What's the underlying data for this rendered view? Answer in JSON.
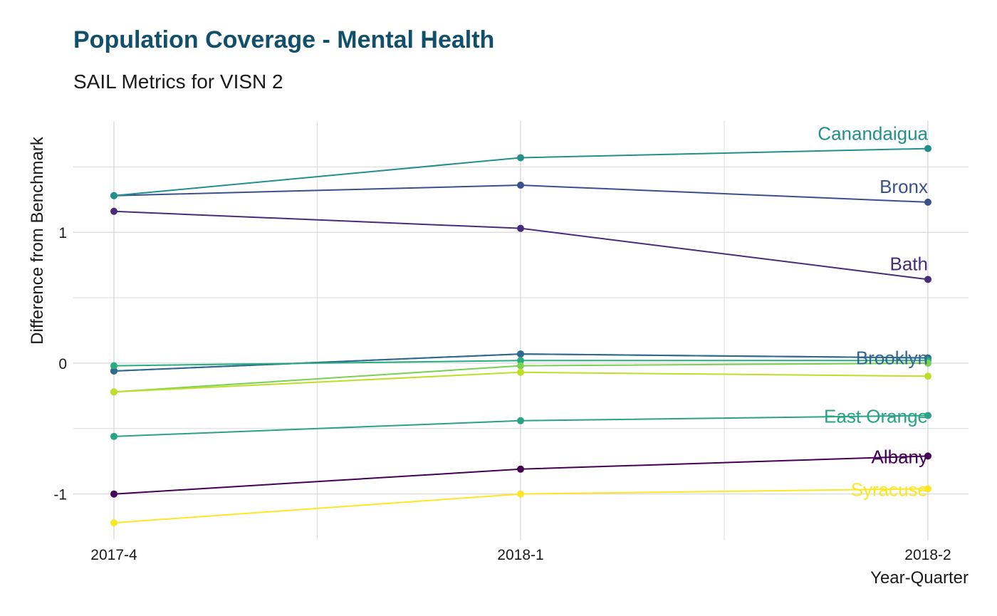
{
  "chart_data": {
    "type": "line",
    "title": "Population Coverage - Mental Health",
    "subtitle": "SAIL Metrics for VISN 2",
    "xlabel": "Year-Quarter",
    "ylabel": "Difference from Benchmark",
    "categories": [
      "2017-4",
      "2018-1",
      "2018-2"
    ],
    "ylim": [
      -1.35,
      1.85
    ],
    "y_ticks": [
      -1,
      0,
      1
    ],
    "y_tick_labels": [
      "-1",
      "0",
      "1"
    ],
    "grid": true,
    "legend": "none",
    "colors": {
      "title": "#114f6b",
      "grid": "#d4d4d4",
      "text": "#1a1a1a"
    },
    "series": [
      {
        "name": "Albany",
        "values": [
          -1.0,
          -0.81,
          -0.71
        ],
        "color": "#440154",
        "labeled": true
      },
      {
        "name": "Bath",
        "values": [
          1.16,
          1.03,
          0.64
        ],
        "color": "#472c7a",
        "labeled": true
      },
      {
        "name": "Bronx",
        "values": [
          1.28,
          1.36,
          1.23
        ],
        "color": "#3b518b",
        "labeled": true
      },
      {
        "name": "",
        "values": [
          -0.06,
          0.07,
          0.04
        ],
        "color": "#2c718e",
        "labeled": false
      },
      {
        "name": "Brooklyn",
        "values": [
          -0.06,
          0.07,
          0.04
        ],
        "color": "#31688e",
        "labeled": true
      },
      {
        "name": "Canandaigua",
        "values": [
          1.28,
          1.57,
          1.64
        ],
        "color": "#21908c",
        "labeled": true
      },
      {
        "name": "",
        "values": [
          -0.02,
          0.02,
          0.02
        ],
        "color": "#27ad81",
        "labeled": false
      },
      {
        "name": "East Orange",
        "values": [
          -0.56,
          -0.44,
          -0.4
        ],
        "color": "#29a383",
        "labeled": true
      },
      {
        "name": "",
        "values": [
          -0.22,
          -0.02,
          0.0
        ],
        "color": "#7ad151",
        "labeled": false
      },
      {
        "name": "",
        "values": [
          -0.22,
          -0.07,
          -0.1
        ],
        "color": "#bddf26",
        "labeled": false
      },
      {
        "name": "Syracuse",
        "values": [
          -1.22,
          -1.0,
          -0.96
        ],
        "color": "#fde725",
        "labeled": true
      }
    ]
  }
}
